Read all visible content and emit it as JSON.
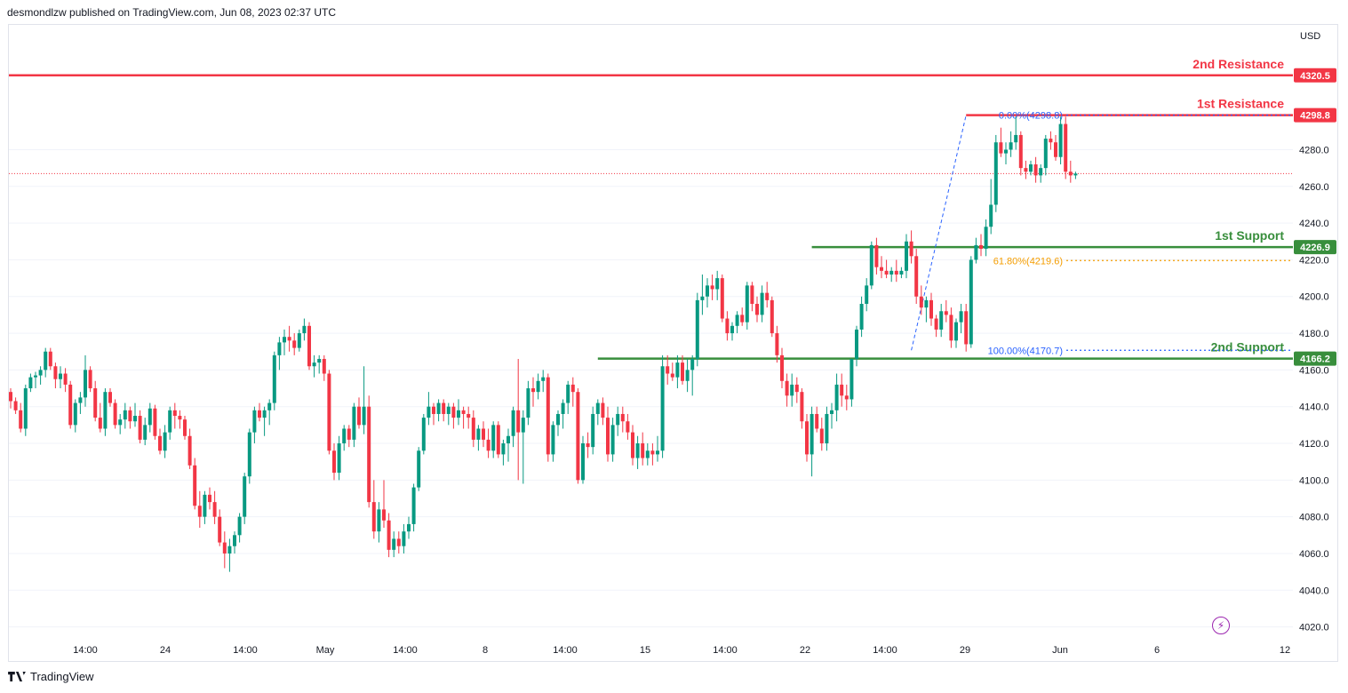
{
  "header": {
    "published_by": "desmondlzw published on TradingView.com, Jun 08, 2023 02:37 UTC"
  },
  "footer": {
    "brand": "TradingView"
  },
  "price_axis": {
    "currency": "USD"
  },
  "colors": {
    "up": "#089981",
    "down": "#f23645",
    "resistance": "#f23645",
    "support": "#388e3c",
    "fib_blue": "#2962ff",
    "fib_orange": "#f59d00",
    "axis_text": "#131722",
    "grid": "#f0f3fa"
  },
  "chart_data": {
    "type": "candlestick",
    "ylim": [
      4014,
      4348
    ],
    "y_ticks": [
      4020,
      4040,
      4060,
      4080,
      4100,
      4120,
      4140,
      4160,
      4180,
      4200,
      4220,
      4240,
      4260,
      4280
    ],
    "x_ticks": [
      "14:00",
      "24",
      "14:00",
      "May",
      "14:00",
      "8",
      "14:00",
      "15",
      "14:00",
      "22",
      "14:00",
      "29",
      "Jun",
      "6",
      "12"
    ],
    "current_price": 4267,
    "levels": [
      {
        "name": "2nd Resistance",
        "value": 4320.5,
        "label": "4320.5",
        "kind": "resistance",
        "from_candle": 0
      },
      {
        "name": "1st Resistance",
        "value": 4298.8,
        "label": "4298.8",
        "kind": "resistance",
        "from_candle": 192
      },
      {
        "name": "1st Support",
        "value": 4226.9,
        "label": "4226.9",
        "kind": "support",
        "from_candle": 161
      },
      {
        "name": "2nd Support",
        "value": 4166.2,
        "label": "4166.2",
        "kind": "support",
        "from_candle": 118
      }
    ],
    "fib": [
      {
        "label": "0.00%(4298.8)",
        "value": 4298.8,
        "color": "blue",
        "from_candle": 192
      },
      {
        "label": "61.80%(4219.6)",
        "value": 4219.6,
        "color": "orange",
        "from_candle": 176
      },
      {
        "label": "100.00%(4170.7)",
        "value": 4170.7,
        "color": "blue",
        "from_candle": 181
      }
    ],
    "candles": [
      [
        4148,
        4150,
        4139,
        4143
      ],
      [
        4143,
        4145,
        4136,
        4138
      ],
      [
        4138,
        4142,
        4126,
        4128
      ],
      [
        4128,
        4152,
        4124,
        4150
      ],
      [
        4150,
        4158,
        4148,
        4156
      ],
      [
        4156,
        4159,
        4150,
        4157
      ],
      [
        4157,
        4162,
        4152,
        4160
      ],
      [
        4160,
        4172,
        4156,
        4170
      ],
      [
        4170,
        4172,
        4160,
        4162
      ],
      [
        4162,
        4164,
        4150,
        4155
      ],
      [
        4155,
        4162,
        4150,
        4158
      ],
      [
        4158,
        4161,
        4148,
        4152
      ],
      [
        4152,
        4154,
        4128,
        4130
      ],
      [
        4130,
        4144,
        4126,
        4142
      ],
      [
        4142,
        4148,
        4136,
        4145
      ],
      [
        4145,
        4168,
        4140,
        4160
      ],
      [
        4160,
        4162,
        4148,
        4150
      ],
      [
        4150,
        4154,
        4132,
        4134
      ],
      [
        4134,
        4142,
        4126,
        4128
      ],
      [
        4128,
        4150,
        4124,
        4148
      ],
      [
        4148,
        4150,
        4140,
        4142
      ],
      [
        4142,
        4144,
        4128,
        4130
      ],
      [
        4130,
        4136,
        4125,
        4133
      ],
      [
        4133,
        4142,
        4128,
        4138
      ],
      [
        4138,
        4140,
        4128,
        4132
      ],
      [
        4132,
        4142,
        4129,
        4135
      ],
      [
        4135,
        4138,
        4120,
        4122
      ],
      [
        4122,
        4134,
        4119,
        4130
      ],
      [
        4130,
        4142,
        4126,
        4139
      ],
      [
        4139,
        4141,
        4122,
        4124
      ],
      [
        4124,
        4128,
        4114,
        4116
      ],
      [
        4116,
        4130,
        4112,
        4126
      ],
      [
        4126,
        4140,
        4122,
        4138
      ],
      [
        4138,
        4142,
        4128,
        4135
      ],
      [
        4135,
        4138,
        4128,
        4133
      ],
      [
        4133,
        4135,
        4122,
        4124
      ],
      [
        4124,
        4128,
        4106,
        4108
      ],
      [
        4108,
        4112,
        4084,
        4086
      ],
      [
        4086,
        4094,
        4074,
        4080
      ],
      [
        4080,
        4094,
        4076,
        4092
      ],
      [
        4092,
        4096,
        4084,
        4088
      ],
      [
        4088,
        4094,
        4076,
        4080
      ],
      [
        4080,
        4084,
        4064,
        4066
      ],
      [
        4066,
        4072,
        4052,
        4060
      ],
      [
        4060,
        4068,
        4050,
        4064
      ],
      [
        4064,
        4072,
        4060,
        4070
      ],
      [
        4070,
        4082,
        4066,
        4080
      ],
      [
        4080,
        4104,
        4076,
        4102
      ],
      [
        4102,
        4128,
        4098,
        4126
      ],
      [
        4126,
        4140,
        4120,
        4138
      ],
      [
        4138,
        4142,
        4132,
        4134
      ],
      [
        4134,
        4140,
        4124,
        4138
      ],
      [
        4138,
        4144,
        4130,
        4142
      ],
      [
        4142,
        4170,
        4138,
        4168
      ],
      [
        4168,
        4178,
        4160,
        4175
      ],
      [
        4175,
        4182,
        4168,
        4178
      ],
      [
        4178,
        4184,
        4170,
        4176
      ],
      [
        4176,
        4180,
        4168,
        4172
      ],
      [
        4172,
        4182,
        4170,
        4180
      ],
      [
        4180,
        4188,
        4176,
        4184
      ],
      [
        4184,
        4186,
        4160,
        4162
      ],
      [
        4162,
        4168,
        4156,
        4164
      ],
      [
        4164,
        4168,
        4158,
        4166
      ],
      [
        4166,
        4168,
        4154,
        4158
      ],
      [
        4158,
        4160,
        4114,
        4116
      ],
      [
        4116,
        4120,
        4100,
        4104
      ],
      [
        4104,
        4124,
        4100,
        4120
      ],
      [
        4120,
        4130,
        4116,
        4128
      ],
      [
        4128,
        4130,
        4118,
        4122
      ],
      [
        4122,
        4142,
        4118,
        4140
      ],
      [
        4140,
        4145,
        4128,
        4130
      ],
      [
        4130,
        4162,
        4125,
        4140
      ],
      [
        4140,
        4146,
        4085,
        4088
      ],
      [
        4088,
        4100,
        4068,
        4072
      ],
      [
        4072,
        4088,
        4066,
        4084
      ],
      [
        4084,
        4100,
        4074,
        4078
      ],
      [
        4078,
        4082,
        4058,
        4062
      ],
      [
        4062,
        4072,
        4058,
        4068
      ],
      [
        4068,
        4072,
        4060,
        4064
      ],
      [
        4064,
        4076,
        4060,
        4072
      ],
      [
        4072,
        4080,
        4068,
        4076
      ],
      [
        4076,
        4098,
        4072,
        4096
      ],
      [
        4096,
        4118,
        4094,
        4116
      ],
      [
        4116,
        4136,
        4114,
        4134
      ],
      [
        4134,
        4148,
        4130,
        4140
      ],
      [
        4140,
        4142,
        4130,
        4136
      ],
      [
        4136,
        4144,
        4132,
        4142
      ],
      [
        4142,
        4144,
        4132,
        4136
      ],
      [
        4136,
        4142,
        4130,
        4140
      ],
      [
        4140,
        4142,
        4128,
        4134
      ],
      [
        4134,
        4144,
        4130,
        4138
      ],
      [
        4138,
        4140,
        4128,
        4136
      ],
      [
        4136,
        4140,
        4128,
        4134
      ],
      [
        4134,
        4138,
        4118,
        4122
      ],
      [
        4122,
        4130,
        4116,
        4128
      ],
      [
        4128,
        4132,
        4118,
        4122
      ],
      [
        4122,
        4128,
        4112,
        4116
      ],
      [
        4116,
        4132,
        4112,
        4130
      ],
      [
        4130,
        4132,
        4112,
        4114
      ],
      [
        4114,
        4122,
        4108,
        4120
      ],
      [
        4120,
        4128,
        4110,
        4124
      ],
      [
        4124,
        4140,
        4118,
        4138
      ],
      [
        4138,
        4166,
        4100,
        4126
      ],
      [
        4126,
        4138,
        4098,
        4134
      ],
      [
        4134,
        4154,
        4130,
        4150
      ],
      [
        4150,
        4156,
        4140,
        4148
      ],
      [
        4148,
        4158,
        4144,
        4154
      ],
      [
        4154,
        4160,
        4148,
        4156
      ],
      [
        4156,
        4158,
        4110,
        4114
      ],
      [
        4114,
        4132,
        4110,
        4130
      ],
      [
        4130,
        4138,
        4124,
        4136
      ],
      [
        4136,
        4144,
        4128,
        4142
      ],
      [
        4142,
        4154,
        4136,
        4152
      ],
      [
        4152,
        4156,
        4140,
        4148
      ],
      [
        4148,
        4150,
        4098,
        4100
      ],
      [
        4100,
        4124,
        4098,
        4120
      ],
      [
        4120,
        4126,
        4112,
        4118
      ],
      [
        4118,
        4140,
        4114,
        4136
      ],
      [
        4136,
        4144,
        4130,
        4142
      ],
      [
        4142,
        4145,
        4130,
        4134
      ],
      [
        4134,
        4140,
        4110,
        4114
      ],
      [
        4114,
        4134,
        4110,
        4130
      ],
      [
        4130,
        4140,
        4124,
        4136
      ],
      [
        4136,
        4140,
        4126,
        4132
      ],
      [
        4132,
        4136,
        4122,
        4126
      ],
      [
        4126,
        4130,
        4108,
        4112
      ],
      [
        4112,
        4124,
        4106,
        4120
      ],
      [
        4120,
        4126,
        4108,
        4112
      ],
      [
        4112,
        4120,
        4108,
        4116
      ],
      [
        4116,
        4120,
        4108,
        4114
      ],
      [
        4114,
        4124,
        4110,
        4116
      ],
      [
        4116,
        4168,
        4112,
        4162
      ],
      [
        4162,
        4168,
        4152,
        4158
      ],
      [
        4158,
        4164,
        4154,
        4156
      ],
      [
        4156,
        4168,
        4150,
        4164
      ],
      [
        4164,
        4168,
        4152,
        4154
      ],
      [
        4154,
        4166,
        4148,
        4160
      ],
      [
        4160,
        4168,
        4146,
        4166
      ],
      [
        4166,
        4202,
        4162,
        4198
      ],
      [
        4198,
        4212,
        4190,
        4200
      ],
      [
        4200,
        4210,
        4194,
        4206
      ],
      [
        4206,
        4212,
        4198,
        4204
      ],
      [
        4204,
        4214,
        4198,
        4210
      ],
      [
        4210,
        4212,
        4186,
        4188
      ],
      [
        4188,
        4192,
        4176,
        4180
      ],
      [
        4180,
        4186,
        4176,
        4184
      ],
      [
        4184,
        4192,
        4180,
        4190
      ],
      [
        4190,
        4194,
        4184,
        4186
      ],
      [
        4186,
        4208,
        4182,
        4206
      ],
      [
        4206,
        4208,
        4192,
        4196
      ],
      [
        4196,
        4200,
        4186,
        4190
      ],
      [
        4190,
        4206,
        4186,
        4202
      ],
      [
        4202,
        4208,
        4194,
        4198
      ],
      [
        4198,
        4200,
        4178,
        4180
      ],
      [
        4180,
        4184,
        4164,
        4168
      ],
      [
        4168,
        4172,
        4150,
        4154
      ],
      [
        4154,
        4158,
        4140,
        4146
      ],
      [
        4146,
        4158,
        4140,
        4152
      ],
      [
        4152,
        4156,
        4142,
        4148
      ],
      [
        4148,
        4150,
        4128,
        4132
      ],
      [
        4132,
        4136,
        4110,
        4114
      ],
      [
        4114,
        4140,
        4102,
        4136
      ],
      [
        4136,
        4140,
        4126,
        4128
      ],
      [
        4128,
        4134,
        4116,
        4120
      ],
      [
        4120,
        4140,
        4116,
        4136
      ],
      [
        4136,
        4142,
        4128,
        4138
      ],
      [
        4138,
        4158,
        4132,
        4152
      ],
      [
        4152,
        4158,
        4140,
        4146
      ],
      [
        4146,
        4152,
        4138,
        4144
      ],
      [
        4144,
        4166,
        4140,
        4166
      ],
      [
        4166,
        4184,
        4162,
        4182
      ],
      [
        4182,
        4200,
        4178,
        4196
      ],
      [
        4196,
        4210,
        4192,
        4206
      ],
      [
        4206,
        4230,
        4204,
        4228
      ],
      [
        4228,
        4232,
        4212,
        4216
      ],
      [
        4216,
        4222,
        4210,
        4214
      ],
      [
        4214,
        4220,
        4210,
        4212
      ],
      [
        4212,
        4216,
        4208,
        4214
      ],
      [
        4214,
        4220,
        4208,
        4212
      ],
      [
        4212,
        4216,
        4210,
        4214
      ],
      [
        4214,
        4234,
        4210,
        4230
      ],
      [
        4230,
        4236,
        4218,
        4222
      ],
      [
        4222,
        4226,
        4196,
        4200
      ],
      [
        4200,
        4206,
        4190,
        4194
      ],
      [
        4194,
        4200,
        4186,
        4198
      ],
      [
        4198,
        4202,
        4184,
        4188
      ],
      [
        4188,
        4190,
        4178,
        4182
      ],
      [
        4182,
        4196,
        4178,
        4192
      ],
      [
        4192,
        4198,
        4186,
        4190
      ],
      [
        4190,
        4194,
        4172,
        4176
      ],
      [
        4176,
        4188,
        4172,
        4186
      ],
      [
        4186,
        4196,
        4180,
        4192
      ],
      [
        4192,
        4196,
        4170,
        4174
      ],
      [
        4174,
        4222,
        4172,
        4220
      ],
      [
        4220,
        4232,
        4218,
        4228
      ],
      [
        4228,
        4234,
        4222,
        4226
      ],
      [
        4226,
        4242,
        4222,
        4238
      ],
      [
        4238,
        4264,
        4234,
        4250
      ],
      [
        4250,
        4288,
        4246,
        4284
      ],
      [
        4284,
        4292,
        4276,
        4278
      ],
      [
        4278,
        4284,
        4272,
        4280
      ],
      [
        4280,
        4290,
        4276,
        4284
      ],
      [
        4284,
        4298,
        4280,
        4288
      ],
      [
        4288,
        4290,
        4266,
        4270
      ],
      [
        4270,
        4274,
        4264,
        4268
      ],
      [
        4268,
        4274,
        4266,
        4272
      ],
      [
        4272,
        4276,
        4262,
        4266
      ],
      [
        4266,
        4272,
        4262,
        4270
      ],
      [
        4270,
        4288,
        4266,
        4286
      ],
      [
        4286,
        4290,
        4280,
        4284
      ],
      [
        4284,
        4288,
        4274,
        4276
      ],
      [
        4276,
        4298,
        4272,
        4294
      ],
      [
        4294,
        4298,
        4264,
        4268
      ],
      [
        4268,
        4274,
        4262,
        4266
      ],
      [
        4266,
        4268,
        4264,
        4267
      ]
    ]
  }
}
